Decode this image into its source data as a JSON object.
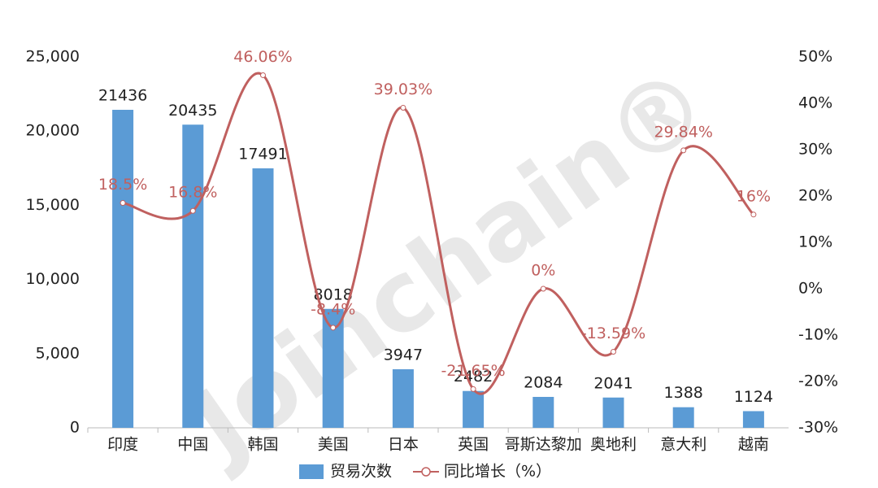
{
  "chart_data": {
    "type": "bar_line",
    "watermark": "Joinchain®",
    "categories": [
      "印度",
      "中国",
      "韩国",
      "美国",
      "日本",
      "英国",
      "哥斯达黎加",
      "奥地利",
      "意大利",
      "越南"
    ],
    "series": [
      {
        "name": "贸易次数",
        "type": "bar",
        "color": "#5b9bd5",
        "axis": "y",
        "values": [
          21436,
          20435,
          17491,
          8018,
          3947,
          2482,
          2084,
          2041,
          1388,
          1124
        ]
      },
      {
        "name": "同比增长（%）",
        "type": "line",
        "color": "#c0605f",
        "axis": "y2",
        "values": [
          18.5,
          16.8,
          46.06,
          -8.4,
          39.03,
          -21.65,
          0,
          -13.59,
          29.84,
          16
        ],
        "value_labels": [
          "18.5%",
          "16.8%",
          "46.06%",
          "-8.4%",
          "39.03%",
          "-21.65%",
          "0%",
          "-13.59%",
          "29.84%",
          "16%"
        ]
      }
    ],
    "ylim": [
      0,
      25000
    ],
    "yticks": [
      0,
      {
        "value": 5000,
        "label": "5,000"
      },
      {
        "value": 10000,
        "label": "10,000"
      },
      {
        "value": 15000,
        "label": "15,000"
      },
      {
        "value": 20000,
        "label": "20,000"
      },
      {
        "value": 25000,
        "label": "25,000"
      }
    ],
    "y2lim": [
      -30,
      50
    ],
    "y2ticks": [
      {
        "value": -30,
        "label": "-30%"
      },
      {
        "value": -20,
        "label": "-20%"
      },
      {
        "value": -10,
        "label": "-10%"
      },
      {
        "value": 0,
        "label": "0%"
      },
      {
        "value": 10,
        "label": "10%"
      },
      {
        "value": 20,
        "label": "20%"
      },
      {
        "value": 30,
        "label": "30%"
      },
      {
        "value": 40,
        "label": "40%"
      },
      {
        "value": 50,
        "label": "50%"
      }
    ],
    "grid": false,
    "legend": "bottom"
  }
}
